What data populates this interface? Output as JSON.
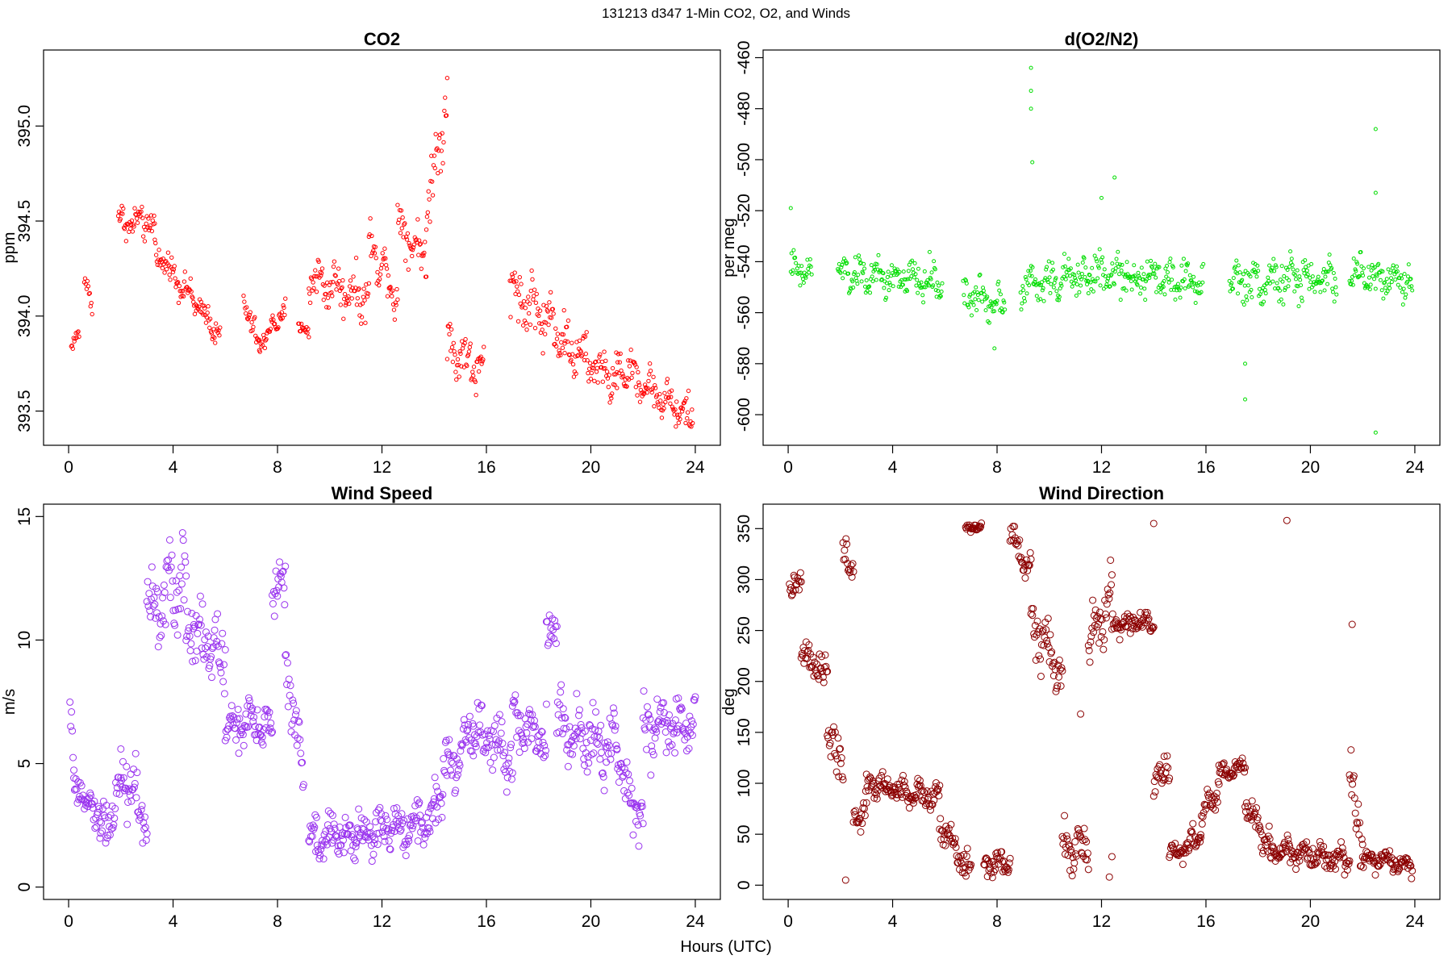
{
  "figure": {
    "title": "131213   d347   1-Min CO2, O2, and Winds",
    "xlabel": "Hours (UTC)"
  },
  "chart_data": [
    {
      "id": "co2",
      "type": "scatter",
      "title": "CO2",
      "ylabel": "ppm",
      "xlim": [
        -0.96,
        24.96
      ],
      "ylim": [
        393.32,
        395.4
      ],
      "xticks": [
        0,
        4,
        8,
        12,
        16,
        20,
        24
      ],
      "yticks": [
        393.5,
        394.0,
        394.5,
        395.0
      ],
      "ytick_labels": [
        "393.5",
        "394.0",
        "394.5",
        "395.0"
      ],
      "color": "#ff0000",
      "marker_radius": 2.2,
      "segments": [
        {
          "x0": 0.1,
          "x1": 0.4,
          "y0": 393.82,
          "y1": 393.92,
          "noise": 0.04
        },
        {
          "x0": 0.6,
          "x1": 0.9,
          "y0": 394.18,
          "y1": 394.05,
          "noise": 0.06
        },
        {
          "x0": 1.9,
          "x1": 3.3,
          "y0": 394.5,
          "y1": 394.48,
          "noise": 0.08
        },
        {
          "x0": 3.3,
          "x1": 5.8,
          "y0": 394.35,
          "y1": 393.9,
          "noise": 0.07
        },
        {
          "x0": 6.7,
          "x1": 7.3,
          "y0": 394.1,
          "y1": 393.82,
          "noise": 0.07
        },
        {
          "x0": 7.3,
          "x1": 8.3,
          "y0": 393.85,
          "y1": 394.03,
          "noise": 0.06
        },
        {
          "x0": 8.8,
          "x1": 9.2,
          "y0": 393.95,
          "y1": 393.9,
          "noise": 0.05
        },
        {
          "x0": 9.2,
          "x1": 11.5,
          "y0": 394.2,
          "y1": 394.1,
          "noise": 0.12
        },
        {
          "x0": 11.5,
          "x1": 12.6,
          "y0": 394.4,
          "y1": 394.1,
          "noise": 0.12
        },
        {
          "x0": 12.6,
          "x1": 13.7,
          "y0": 394.5,
          "y1": 394.3,
          "noise": 0.12
        },
        {
          "x0": 13.7,
          "x1": 14.5,
          "y0": 394.5,
          "y1": 395.2,
          "noise": 0.18
        },
        {
          "x0": 14.5,
          "x1": 15.9,
          "y0": 393.85,
          "y1": 393.7,
          "noise": 0.13
        },
        {
          "x0": 16.9,
          "x1": 19.0,
          "y0": 394.15,
          "y1": 393.9,
          "noise": 0.15
        },
        {
          "x0": 19.0,
          "x1": 21.0,
          "y0": 393.85,
          "y1": 393.65,
          "noise": 0.12
        },
        {
          "x0": 21.0,
          "x1": 23.9,
          "y0": 393.75,
          "y1": 393.45,
          "noise": 0.1
        }
      ]
    },
    {
      "id": "o2",
      "type": "scatter",
      "title": "d(O2/N2)",
      "ylabel": "per meg",
      "xlim": [
        -0.96,
        24.96
      ],
      "ylim": [
        -612.0,
        -457.0
      ],
      "xticks": [
        0,
        4,
        8,
        12,
        16,
        20,
        24
      ],
      "yticks": [
        -600,
        -580,
        -560,
        -540,
        -520,
        -500,
        -480,
        -460
      ],
      "ytick_labels": [
        "-600",
        "-580",
        "-560",
        "-540",
        "-520",
        "-500",
        "-480",
        "-460"
      ],
      "color": "#00dd00",
      "marker_radius": 2.0,
      "segments": [
        {
          "x0": 0.1,
          "x1": 0.9,
          "y0": -543,
          "y1": -545,
          "noise": 6
        },
        {
          "x0": 1.9,
          "x1": 5.9,
          "y0": -545,
          "y1": -548,
          "noise": 7
        },
        {
          "x0": 6.7,
          "x1": 8.3,
          "y0": -553,
          "y1": -556,
          "noise": 7
        },
        {
          "x0": 8.9,
          "x1": 11.5,
          "y0": -550,
          "y1": -545,
          "noise": 7
        },
        {
          "x0": 11.5,
          "x1": 15.9,
          "y0": -545,
          "y1": -548,
          "noise": 8
        },
        {
          "x0": 16.9,
          "x1": 21.0,
          "y0": -548,
          "y1": -546,
          "noise": 8
        },
        {
          "x0": 21.5,
          "x1": 23.9,
          "y0": -545,
          "y1": -548,
          "noise": 7
        }
      ],
      "outliers": [
        [
          9.3,
          -464
        ],
        [
          9.3,
          -473
        ],
        [
          9.3,
          -480
        ],
        [
          9.35,
          -501
        ],
        [
          22.5,
          -488
        ],
        [
          22.5,
          -513
        ],
        [
          22.5,
          -607
        ],
        [
          17.5,
          -594
        ],
        [
          17.5,
          -580
        ],
        [
          12.5,
          -507
        ],
        [
          12.0,
          -515
        ],
        [
          0.1,
          -519
        ],
        [
          7.9,
          -574
        ]
      ]
    },
    {
      "id": "wind_speed",
      "type": "scatter",
      "title": "Wind Speed",
      "ylabel": "m/s",
      "xlim": [
        -0.96,
        24.96
      ],
      "ylim": [
        -0.5,
        15.5
      ],
      "xticks": [
        0,
        4,
        8,
        12,
        16,
        20,
        24
      ],
      "yticks": [
        0,
        5,
        10,
        15
      ],
      "ytick_labels": [
        "0",
        "5",
        "10",
        "15"
      ],
      "color": "#9933ee",
      "marker_radius": 4.0,
      "segments": [
        {
          "x0": 0.05,
          "x1": 0.2,
          "y0": 7.0,
          "y1": 5.0,
          "noise": 0.6
        },
        {
          "x0": 0.2,
          "x1": 1.2,
          "y0": 4.0,
          "y1": 3.0,
          "noise": 0.6
        },
        {
          "x0": 1.2,
          "x1": 2.0,
          "y0": 2.0,
          "y1": 4.0,
          "noise": 1.0
        },
        {
          "x0": 2.0,
          "x1": 3.0,
          "y0": 5.0,
          "y1": 2.5,
          "noise": 1.5
        },
        {
          "x0": 3.0,
          "x1": 4.5,
          "y0": 11.0,
          "y1": 12.5,
          "noise": 1.6
        },
        {
          "x0": 4.5,
          "x1": 6.0,
          "y0": 11.0,
          "y1": 9.0,
          "noise": 1.5
        },
        {
          "x0": 6.0,
          "x1": 7.8,
          "y0": 6.5,
          "y1": 6.5,
          "noise": 1.0
        },
        {
          "x0": 7.8,
          "x1": 8.3,
          "y0": 12.5,
          "y1": 12.0,
          "noise": 1.2
        },
        {
          "x0": 8.3,
          "x1": 9.0,
          "y0": 9.0,
          "y1": 4.5,
          "noise": 1.2
        },
        {
          "x0": 9.2,
          "x1": 11.0,
          "y0": 2.0,
          "y1": 2.0,
          "noise": 0.9
        },
        {
          "x0": 11.0,
          "x1": 14.0,
          "y0": 2.0,
          "y1": 2.8,
          "noise": 0.9
        },
        {
          "x0": 14.0,
          "x1": 15.5,
          "y0": 3.5,
          "y1": 6.5,
          "noise": 1.2
        },
        {
          "x0": 15.5,
          "x1": 17.0,
          "y0": 6.5,
          "y1": 5.0,
          "noise": 1.3
        },
        {
          "x0": 17.0,
          "x1": 18.3,
          "y0": 7.0,
          "y1": 6.0,
          "noise": 1.1
        },
        {
          "x0": 18.3,
          "x1": 18.7,
          "y0": 10.5,
          "y1": 10.5,
          "noise": 0.8
        },
        {
          "x0": 18.7,
          "x1": 21.0,
          "y0": 6.5,
          "y1": 5.5,
          "noise": 1.3
        },
        {
          "x0": 21.0,
          "x1": 22.0,
          "y0": 5.0,
          "y1": 2.5,
          "noise": 1.2
        },
        {
          "x0": 22.0,
          "x1": 24.0,
          "y0": 6.5,
          "y1": 6.5,
          "noise": 1.2
        }
      ]
    },
    {
      "id": "wind_direction",
      "type": "scatter",
      "title": "Wind Direction",
      "ylabel": "deg",
      "xlim": [
        -0.96,
        24.96
      ],
      "ylim": [
        -14.0,
        374.0
      ],
      "xticks": [
        0,
        4,
        8,
        12,
        16,
        20,
        24
      ],
      "yticks": [
        0,
        50,
        100,
        150,
        200,
        250,
        300,
        350
      ],
      "ytick_labels": [
        "0",
        "50",
        "100",
        "150",
        "200",
        "250",
        "300",
        "350"
      ],
      "color": "#8b0000",
      "marker_radius": 4.0,
      "segments": [
        {
          "x0": 0.05,
          "x1": 0.5,
          "y0": 280,
          "y1": 305,
          "noise": 15
        },
        {
          "x0": 0.5,
          "x1": 1.5,
          "y0": 225,
          "y1": 205,
          "noise": 15
        },
        {
          "x0": 1.5,
          "x1": 2.1,
          "y0": 160,
          "y1": 110,
          "noise": 25
        },
        {
          "x0": 2.1,
          "x1": 2.5,
          "y0": 340,
          "y1": 300,
          "noise": 20
        },
        {
          "x0": 2.5,
          "x1": 3.0,
          "y0": 60,
          "y1": 80,
          "noise": 15
        },
        {
          "x0": 3.0,
          "x1": 5.8,
          "y0": 100,
          "y1": 85,
          "noise": 12
        },
        {
          "x0": 5.8,
          "x1": 7.0,
          "y0": 60,
          "y1": 10,
          "noise": 15
        },
        {
          "x0": 6.8,
          "x1": 7.4,
          "y0": 350,
          "y1": 352,
          "noise": 5
        },
        {
          "x0": 7.5,
          "x1": 8.5,
          "y0": 20,
          "y1": 20,
          "noise": 10
        },
        {
          "x0": 8.5,
          "x1": 9.3,
          "y0": 345,
          "y1": 310,
          "noise": 15
        },
        {
          "x0": 9.3,
          "x1": 10.5,
          "y0": 260,
          "y1": 200,
          "noise": 25
        },
        {
          "x0": 10.5,
          "x1": 11.5,
          "y0": 40,
          "y1": 40,
          "noise": 25
        },
        {
          "x0": 11.5,
          "x1": 12.4,
          "y0": 230,
          "y1": 290,
          "noise": 25
        },
        {
          "x0": 12.4,
          "x1": 14.0,
          "y0": 255,
          "y1": 260,
          "noise": 10
        },
        {
          "x0": 14.0,
          "x1": 14.6,
          "y0": 90,
          "y1": 120,
          "noise": 20
        },
        {
          "x0": 14.6,
          "x1": 15.8,
          "y0": 25,
          "y1": 50,
          "noise": 12
        },
        {
          "x0": 15.8,
          "x1": 16.5,
          "y0": 60,
          "y1": 100,
          "noise": 15
        },
        {
          "x0": 16.5,
          "x1": 17.5,
          "y0": 110,
          "y1": 115,
          "noise": 8
        },
        {
          "x0": 17.5,
          "x1": 18.5,
          "y0": 80,
          "y1": 35,
          "noise": 15
        },
        {
          "x0": 18.5,
          "x1": 21.5,
          "y0": 35,
          "y1": 25,
          "noise": 12
        },
        {
          "x0": 21.5,
          "x1": 22.0,
          "y0": 100,
          "y1": 40,
          "noise": 30
        },
        {
          "x0": 22.0,
          "x1": 23.9,
          "y0": 25,
          "y1": 20,
          "noise": 10
        }
      ],
      "outliers": [
        [
          19.1,
          358
        ],
        [
          21.6,
          256
        ],
        [
          14.0,
          355
        ],
        [
          11.2,
          168
        ],
        [
          2.2,
          5
        ],
        [
          12.3,
          8
        ],
        [
          12.4,
          28
        ]
      ]
    }
  ]
}
